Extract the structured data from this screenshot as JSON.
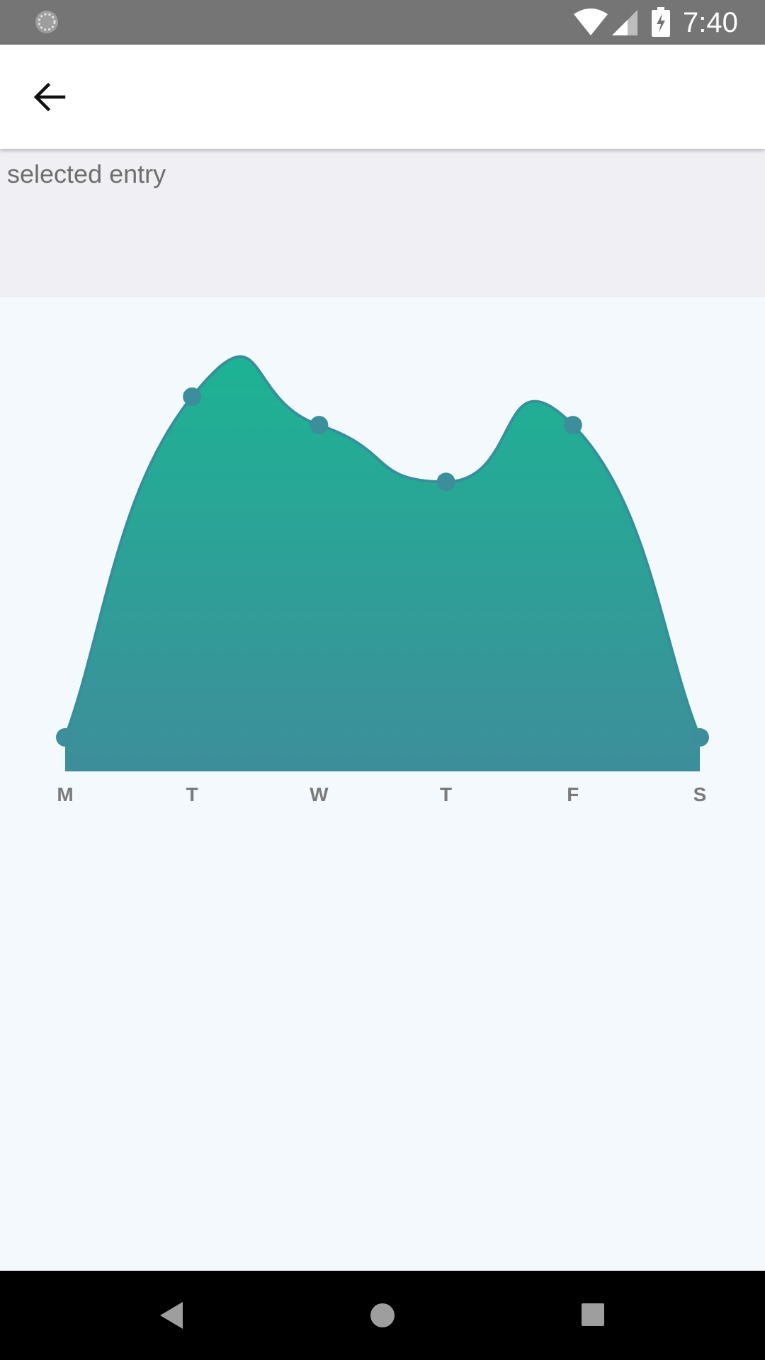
{
  "status_bar": {
    "time": "7:40",
    "icons": [
      "sync-icon",
      "wifi-icon",
      "signal-icon",
      "battery-charging-icon"
    ]
  },
  "app_bar": {
    "back_icon": "arrow-left-icon"
  },
  "selected_panel": {
    "label": "selected entry"
  },
  "chart_data": {
    "type": "area",
    "categories": [
      "M",
      "T",
      "W",
      "T",
      "F",
      "S"
    ],
    "series": [
      {
        "values": [
          0,
          6,
          5.5,
          4.5,
          5.5,
          0
        ]
      }
    ],
    "xlabel": "",
    "ylabel": "",
    "ylim": [
      0,
      6
    ],
    "grid": false,
    "smooth": true,
    "colors": {
      "gradient_top": "#1db394",
      "gradient_bottom": "#3d8e9a",
      "line": "#35909a",
      "points": "#3b8e9a",
      "tick_labels": "#7a7a7a"
    }
  },
  "nav_bar": {
    "icons": [
      "back-triangle-icon",
      "home-circle-icon",
      "recents-square-icon"
    ]
  }
}
